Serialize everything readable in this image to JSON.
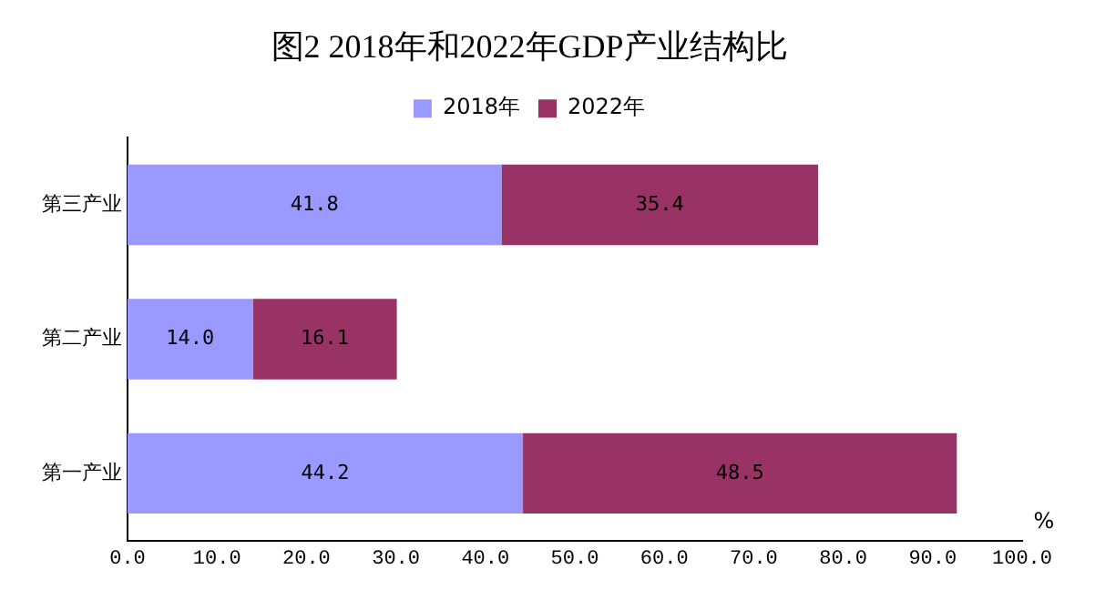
{
  "chart_data": {
    "type": "bar",
    "orientation": "horizontal",
    "stacked": true,
    "title": "图2 2018年和2022年GDP产业结构比",
    "xlabel": "%",
    "legend": "top",
    "categories": [
      "第三产业",
      "第二产业",
      "第一产业"
    ],
    "series": [
      {
        "name": "2018年",
        "color": "#9999ff",
        "values": [
          41.8,
          14.0,
          44.2
        ],
        "value_labels": [
          "41.8",
          "14.0",
          "44.2"
        ]
      },
      {
        "name": "2022年",
        "color": "#993366",
        "values": [
          35.4,
          16.1,
          48.5
        ],
        "value_labels": [
          "35.4",
          "16.1",
          "48.5"
        ]
      }
    ],
    "xlim": [
      0,
      100
    ],
    "xticks": [
      {
        "value": 0,
        "label": "0.0"
      },
      {
        "value": 10,
        "label": "10.0"
      },
      {
        "value": 20,
        "label": "20.0"
      },
      {
        "value": 30,
        "label": "30.0"
      },
      {
        "value": 40,
        "label": "40.0"
      },
      {
        "value": 50,
        "label": "50.0"
      },
      {
        "value": 60,
        "label": "60.0"
      },
      {
        "value": 70,
        "label": "70.0"
      },
      {
        "value": 80,
        "label": "80.0"
      },
      {
        "value": 90,
        "label": "90.0"
      },
      {
        "value": 100,
        "label": "100.0"
      }
    ]
  }
}
